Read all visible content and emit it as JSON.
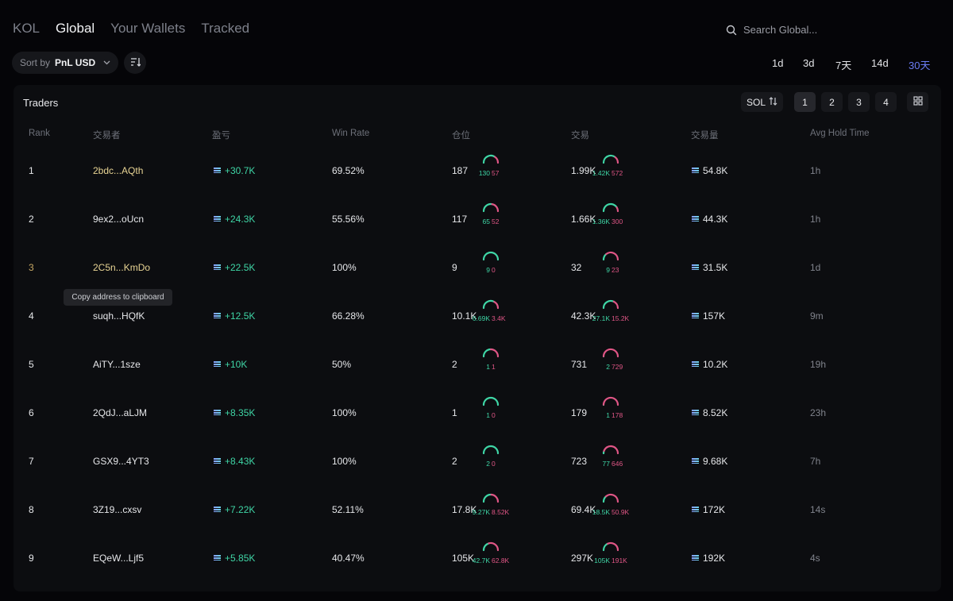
{
  "tabs": [
    "KOL",
    "Global",
    "Your Wallets",
    "Tracked"
  ],
  "active_tab": 1,
  "search": {
    "placeholder": "Search Global..."
  },
  "sort": {
    "label": "Sort by",
    "value": "PnL USD"
  },
  "periods": [
    "1d",
    "3d",
    "7天",
    "14d",
    "30天"
  ],
  "active_period": 4,
  "panel": {
    "title": "Traders",
    "currency": "SOL",
    "pages": [
      "1",
      "2",
      "3",
      "4"
    ],
    "active_page": 0
  },
  "columns": [
    "Rank",
    "交易者",
    "盈亏",
    "Win Rate",
    "仓位",
    "交易",
    "交易量",
    "Avg Hold Time"
  ],
  "tooltip": "Copy address to clipboard",
  "colors": {
    "green": "#3fd6a6",
    "red": "#e05686",
    "accent": "#6a7cf4",
    "gold": "#e8d494"
  },
  "rows": [
    {
      "rank": "1",
      "trader": "2bdc...AQth",
      "pnl": "+30.7K",
      "win_rate": "69.52%",
      "pos_total": "187",
      "pos_win": "130",
      "pos_loss": "57",
      "pos_win_frac": 0.6952,
      "tx_total": "1.99K",
      "tx_buy": "1.42K",
      "tx_sell": "572",
      "tx_buy_frac": 0.713,
      "volume": "54.8K",
      "hold": "1h",
      "highlight": "gold-addr"
    },
    {
      "rank": "2",
      "trader": "9ex2...oUcn",
      "pnl": "+24.3K",
      "win_rate": "55.56%",
      "pos_total": "117",
      "pos_win": "65",
      "pos_loss": "52",
      "pos_win_frac": 0.5556,
      "tx_total": "1.66K",
      "tx_buy": "1.36K",
      "tx_sell": "300",
      "tx_buy_frac": 0.819,
      "volume": "44.3K",
      "hold": "1h",
      "highlight": ""
    },
    {
      "rank": "3",
      "trader": "2C5n...KmDo",
      "pnl": "+22.5K",
      "win_rate": "100%",
      "pos_total": "9",
      "pos_win": "9",
      "pos_loss": "0",
      "pos_win_frac": 1.0,
      "tx_total": "32",
      "tx_buy": "9",
      "tx_sell": "23",
      "tx_buy_frac": 0.281,
      "volume": "31.5K",
      "hold": "1d",
      "highlight": "gold-rank"
    },
    {
      "rank": "4",
      "trader": "suqh...HQfK",
      "pnl": "+12.5K",
      "win_rate": "66.28%",
      "pos_total": "10.1K",
      "pos_win": "6.69K",
      "pos_loss": "3.4K",
      "pos_win_frac": 0.6628,
      "tx_total": "42.3K",
      "tx_buy": "27.1K",
      "tx_sell": "15.2K",
      "tx_buy_frac": 0.641,
      "volume": "157K",
      "hold": "9m",
      "highlight": ""
    },
    {
      "rank": "5",
      "trader": "AiTY...1sze",
      "pnl": "+10K",
      "win_rate": "50%",
      "pos_total": "2",
      "pos_win": "1",
      "pos_loss": "1",
      "pos_win_frac": 0.5,
      "tx_total": "731",
      "tx_buy": "2",
      "tx_sell": "729",
      "tx_buy_frac": 0.003,
      "volume": "10.2K",
      "hold": "19h",
      "highlight": ""
    },
    {
      "rank": "6",
      "trader": "2QdJ...aLJM",
      "pnl": "+8.35K",
      "win_rate": "100%",
      "pos_total": "1",
      "pos_win": "1",
      "pos_loss": "0",
      "pos_win_frac": 1.0,
      "tx_total": "179",
      "tx_buy": "1",
      "tx_sell": "178",
      "tx_buy_frac": 0.006,
      "volume": "8.52K",
      "hold": "23h",
      "highlight": ""
    },
    {
      "rank": "7",
      "trader": "GSX9...4YT3",
      "pnl": "+8.43K",
      "win_rate": "100%",
      "pos_total": "2",
      "pos_win": "2",
      "pos_loss": "0",
      "pos_win_frac": 1.0,
      "tx_total": "723",
      "tx_buy": "77",
      "tx_sell": "646",
      "tx_buy_frac": 0.106,
      "volume": "9.68K",
      "hold": "7h",
      "highlight": ""
    },
    {
      "rank": "8",
      "trader": "3Z19...cxsv",
      "pnl": "+7.22K",
      "win_rate": "52.11%",
      "pos_total": "17.8K",
      "pos_win": "9.27K",
      "pos_loss": "8.52K",
      "pos_win_frac": 0.5211,
      "tx_total": "69.4K",
      "tx_buy": "18.5K",
      "tx_sell": "50.9K",
      "tx_buy_frac": 0.267,
      "volume": "172K",
      "hold": "14s",
      "highlight": ""
    },
    {
      "rank": "9",
      "trader": "EQeW...Ljf5",
      "pnl": "+5.85K",
      "win_rate": "40.47%",
      "pos_total": "105K",
      "pos_win": "42.7K",
      "pos_loss": "62.8K",
      "pos_win_frac": 0.4047,
      "tx_total": "297K",
      "tx_buy": "105K",
      "tx_sell": "191K",
      "tx_buy_frac": 0.355,
      "volume": "192K",
      "hold": "4s",
      "highlight": ""
    }
  ]
}
